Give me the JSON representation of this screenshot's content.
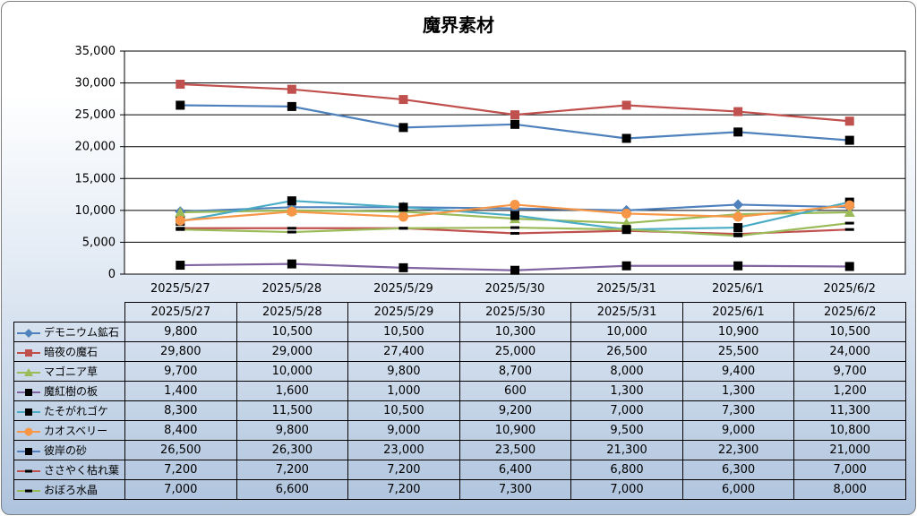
{
  "chart_data": {
    "type": "line",
    "title": "魔界素材",
    "categories": [
      "2025/5/27",
      "2025/5/28",
      "2025/5/29",
      "2025/5/30",
      "2025/5/31",
      "2025/6/1",
      "2025/6/2"
    ],
    "ylim": [
      0,
      35000
    ],
    "yticks": [
      "0",
      "5,000",
      "10,000",
      "15,000",
      "20,000",
      "25,000",
      "30,000",
      "35,000"
    ],
    "grid": true,
    "legend": "data-table",
    "series": [
      {
        "name": "デモニウム鉱石",
        "color": "#4f81bd",
        "marker": "diamond",
        "values": [
          9800,
          10500,
          10500,
          10300,
          10000,
          10900,
          10500
        ],
        "labels": [
          "9,800",
          "10,500",
          "10,500",
          "10,300",
          "10,000",
          "10,900",
          "10,500"
        ]
      },
      {
        "name": "暗夜の魔石",
        "color": "#c0504d",
        "marker": "square",
        "values": [
          29800,
          29000,
          27400,
          25000,
          26500,
          25500,
          24000
        ],
        "labels": [
          "29,800",
          "29,000",
          "27,400",
          "25,000",
          "26,500",
          "25,500",
          "24,000"
        ]
      },
      {
        "name": "マゴニア草",
        "color": "#9bbb59",
        "marker": "triangle",
        "values": [
          9700,
          10000,
          9800,
          8700,
          8000,
          9400,
          9700
        ],
        "labels": [
          "9,700",
          "10,000",
          "9,800",
          "8,700",
          "8,000",
          "9,400",
          "9,700"
        ]
      },
      {
        "name": "魔紅樹の板",
        "color": "#8064a2",
        "marker": "blacksquare",
        "values": [
          1400,
          1600,
          1000,
          600,
          1300,
          1300,
          1200
        ],
        "labels": [
          "1,400",
          "1,600",
          "1,000",
          "600",
          "1,300",
          "1,300",
          "1,200"
        ]
      },
      {
        "name": "たそがれゴケ",
        "color": "#4bacc6",
        "marker": "blacksquare",
        "values": [
          8300,
          11500,
          10500,
          9200,
          7000,
          7300,
          11300
        ],
        "labels": [
          "8,300",
          "11,500",
          "10,500",
          "9,200",
          "7,000",
          "7,300",
          "11,300"
        ]
      },
      {
        "name": "カオスベリー",
        "color": "#f79646",
        "marker": "circle",
        "values": [
          8400,
          9800,
          9000,
          10900,
          9500,
          9000,
          10800
        ],
        "labels": [
          "8,400",
          "9,800",
          "9,000",
          "10,900",
          "9,500",
          "9,000",
          "10,800"
        ]
      },
      {
        "name": "彼岸の砂",
        "color": "#4f81bd",
        "marker": "blacksquare",
        "values": [
          26500,
          26300,
          23000,
          23500,
          21300,
          22300,
          21000
        ],
        "labels": [
          "26,500",
          "26,300",
          "23,000",
          "23,500",
          "21,300",
          "22,300",
          "21,000"
        ]
      },
      {
        "name": "ささやく枯れ葉",
        "color": "#c0504d",
        "marker": "dash",
        "values": [
          7200,
          7200,
          7200,
          6400,
          6800,
          6300,
          7000
        ],
        "labels": [
          "7,200",
          "7,200",
          "7,200",
          "6,400",
          "6,800",
          "6,300",
          "7,000"
        ]
      },
      {
        "name": "おぼろ水晶",
        "color": "#9bbb59",
        "marker": "dash",
        "values": [
          7000,
          6600,
          7200,
          7300,
          7000,
          6000,
          8000
        ],
        "labels": [
          "7,000",
          "6,600",
          "7,200",
          "7,300",
          "7,000",
          "6,000",
          "8,000"
        ]
      }
    ]
  }
}
